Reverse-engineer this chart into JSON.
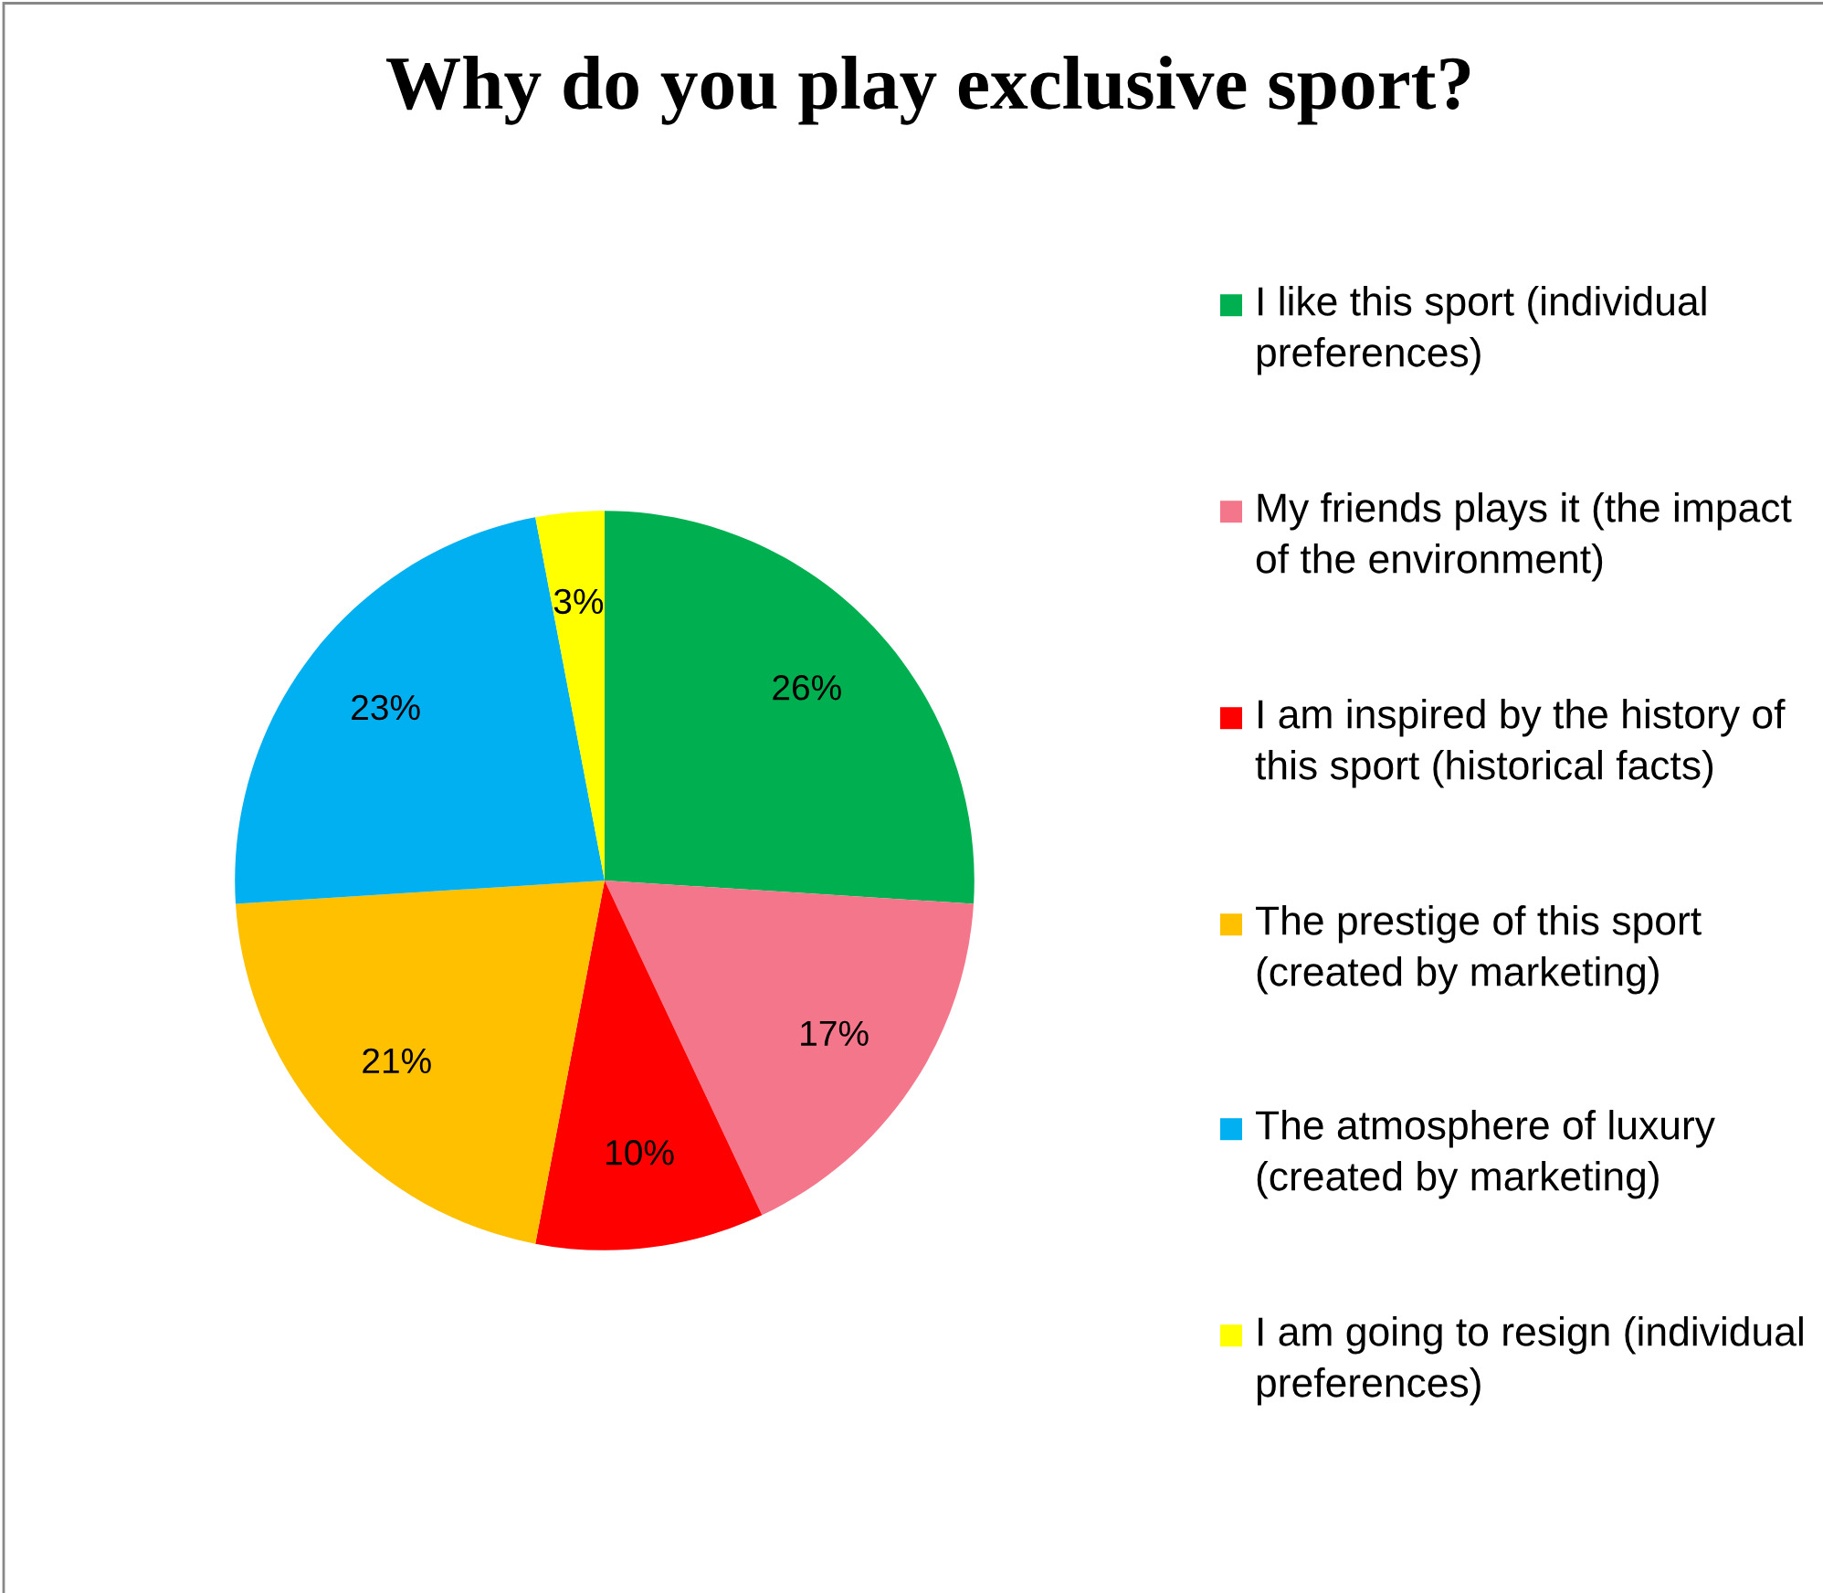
{
  "chart_data": {
    "type": "pie",
    "title": "Why do you play exclusive sport?",
    "categories": [
      "I like this sport (individual preferences)",
      "My friends plays it (the impact of the environment)",
      "I am inspired by the history of this sport (historical facts)",
      "The prestige of this sport (created by marketing)",
      "The atmosphere of luxury (created by marketing)",
      "I am going to resign (individual preferences)"
    ],
    "values": [
      26,
      17,
      10,
      21,
      23,
      3
    ],
    "colors": [
      "#00b050",
      "#f4768a",
      "#ff0000",
      "#ffc000",
      "#00b0f0",
      "#ffff00"
    ],
    "value_labels": [
      "26%",
      "17%",
      "10%",
      "21%",
      "23%",
      "3%"
    ],
    "legend": "right"
  }
}
